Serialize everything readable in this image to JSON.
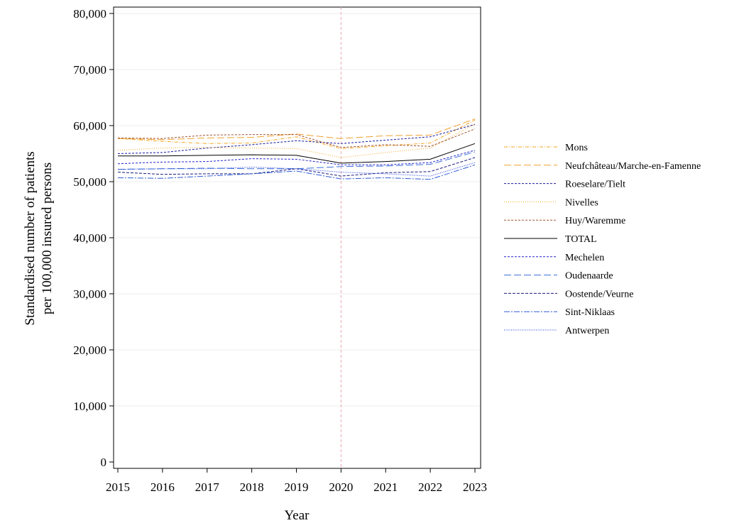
{
  "chart_data": {
    "type": "line",
    "xlabel": "Year",
    "ylabel_lines": [
      "Standardised number of patients",
      "per 100,000 insured persons"
    ],
    "x": [
      2015,
      2016,
      2017,
      2018,
      2019,
      2020,
      2021,
      2022,
      2023
    ],
    "x_tick_labels": [
      "2015",
      "2016",
      "2017",
      "2018",
      "2019",
      "2020",
      "2021",
      "2022",
      "2023"
    ],
    "ylim": [
      0,
      80000
    ],
    "y_ticks": [
      0,
      10000,
      20000,
      30000,
      40000,
      50000,
      60000,
      70000,
      80000
    ],
    "y_tick_labels": [
      "0",
      "10,000",
      "20,000",
      "30,000",
      "40,000",
      "50,000",
      "60,000",
      "70,000",
      "80,000"
    ],
    "reference_line_x": 2020,
    "grid": "horizontal",
    "legend_position": "right",
    "series": [
      {
        "name": "Mons",
        "color": "#F5A623",
        "dash": "5,2,1,2",
        "values": [
          57700,
          57200,
          56800,
          56900,
          58000,
          55900,
          56400,
          56900,
          61000
        ]
      },
      {
        "name": "Neufchâteau/Marche-en-Famenne",
        "color": "#F0A030",
        "dash": "10,4",
        "values": [
          57700,
          57500,
          57800,
          57900,
          58500,
          57700,
          58200,
          58300,
          61200
        ]
      },
      {
        "name": "Roeselare/Tielt",
        "color": "#1A1A9E",
        "dash": "3,2",
        "values": [
          55000,
          55200,
          56000,
          56600,
          57300,
          56800,
          57400,
          58000,
          60200
        ]
      },
      {
        "name": "Nivelles",
        "color": "#F5A623",
        "dash": "1,2",
        "values": [
          55600,
          56000,
          56100,
          56000,
          55900,
          54300,
          55200,
          56000,
          60300
        ]
      },
      {
        "name": "Huy/Waremme",
        "color": "#A0522D",
        "dash": "3,2",
        "values": [
          57800,
          57700,
          58300,
          58400,
          58400,
          56100,
          56600,
          56300,
          59400
        ]
      },
      {
        "name": "TOTAL",
        "color": "#000000",
        "dash": "",
        "values": [
          54600,
          54600,
          54700,
          54800,
          54700,
          53300,
          53600,
          54000,
          56800
        ]
      },
      {
        "name": "Mechelen",
        "color": "#2222C8",
        "dash": "3,2",
        "values": [
          53200,
          53500,
          53600,
          54100,
          54000,
          53000,
          53000,
          53400,
          55600
        ]
      },
      {
        "name": "Oudenaarde",
        "color": "#3B6FD8",
        "dash": "10,4",
        "values": [
          52200,
          52300,
          52400,
          52300,
          52300,
          52700,
          52800,
          53100,
          55300
        ]
      },
      {
        "name": "Oostende/Veurne",
        "color": "#1A1A7E",
        "dash": "4,2",
        "values": [
          51700,
          51300,
          51400,
          51400,
          52300,
          51000,
          51600,
          51800,
          54300
        ]
      },
      {
        "name": "Sint-Niklaas",
        "color": "#2E5CD6",
        "dash": "8,2,2,2",
        "values": [
          50700,
          50600,
          51000,
          51400,
          51900,
          50500,
          50700,
          50400,
          53000
        ]
      },
      {
        "name": "Antwerpen",
        "color": "#1E3FE0",
        "dash": "1,1.5",
        "values": [
          52200,
          52300,
          52300,
          52600,
          52300,
          51700,
          51400,
          51000,
          53400
        ]
      }
    ]
  }
}
